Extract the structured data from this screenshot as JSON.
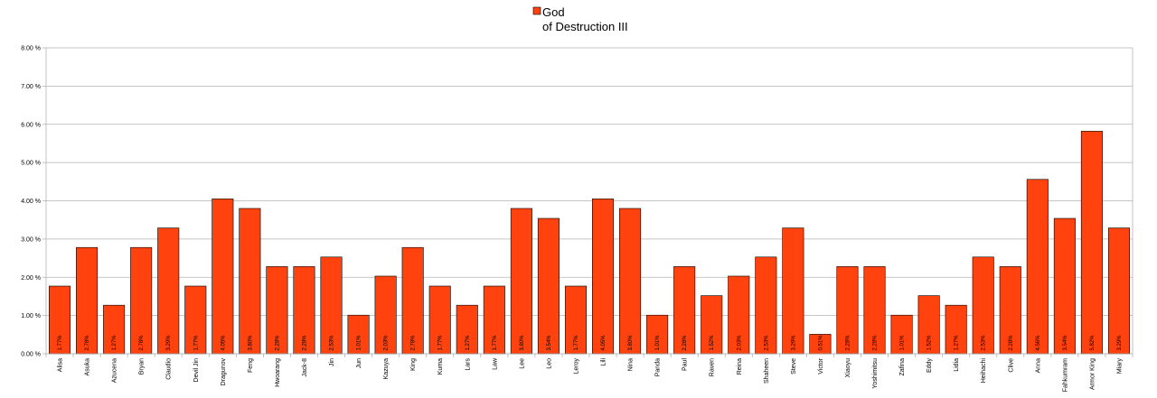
{
  "chart_data": {
    "type": "bar",
    "title": "",
    "xlabel": "",
    "ylabel": "",
    "ylim": [
      0,
      8
    ],
    "yticks": [
      "0.00 %",
      "1.00 %",
      "2.00 %",
      "3.00 %",
      "4.00 %",
      "5.00 %",
      "6.00 %",
      "7.00 %",
      "8.00 %"
    ],
    "grid": true,
    "legend_position": "top-center",
    "series_color": "#ff420e",
    "categories": [
      "Alisa",
      "Asuka",
      "Azucena",
      "Bryan",
      "Claudio",
      "Devil Jin",
      "Dragunov",
      "Feng",
      "Hwoarang",
      "Jack-8",
      "Jin",
      "Jun",
      "Kazuya",
      "King",
      "Kuma",
      "Lars",
      "Law",
      "Lee",
      "Leo",
      "Leroy",
      "Lili",
      "Nina",
      "Panda",
      "Paul",
      "Raven",
      "Reina",
      "Shaheen",
      "Steve",
      "Victor",
      "Xiaoyu",
      "Yoshimitsu",
      "Zafina",
      "Eddy",
      "Lidia",
      "Heihachi",
      "Clive",
      "Anna",
      "Fahkumram",
      "Armor King",
      "Miary"
    ],
    "series": [
      {
        "name_lines": [
          "God",
          "of Destruction III"
        ],
        "values": [
          1.77,
          2.78,
          1.27,
          2.78,
          3.29,
          1.77,
          4.05,
          3.8,
          2.28,
          2.28,
          2.53,
          1.01,
          2.03,
          2.78,
          1.77,
          1.27,
          1.77,
          3.8,
          3.54,
          1.77,
          4.05,
          3.8,
          1.01,
          2.28,
          1.52,
          2.03,
          2.53,
          3.29,
          0.51,
          2.28,
          2.28,
          1.01,
          1.52,
          1.27,
          2.53,
          2.28,
          4.56,
          3.54,
          5.82,
          3.29
        ],
        "labels": [
          "1.77%",
          "2.78%",
          "1.27%",
          "2.78%",
          "3.29%",
          "1.77%",
          "4.05%",
          "3.80%",
          "2.28%",
          "2.28%",
          "2.53%",
          "1.01%",
          "2.03%",
          "2.78%",
          "1.77%",
          "1.27%",
          "1.77%",
          "3.80%",
          "3.54%",
          "1.77%",
          "4.05%",
          "3.80%",
          "1.01%",
          "2.28%",
          "1.52%",
          "2.03%",
          "2.53%",
          "3.29%",
          "0.51%",
          "2.28%",
          "2.28%",
          "1.01%",
          "1.52%",
          "1.27%",
          "2.53%",
          "2.28%",
          "4.56%",
          "3.54%",
          "5.82%",
          "3.29%"
        ]
      }
    ]
  }
}
